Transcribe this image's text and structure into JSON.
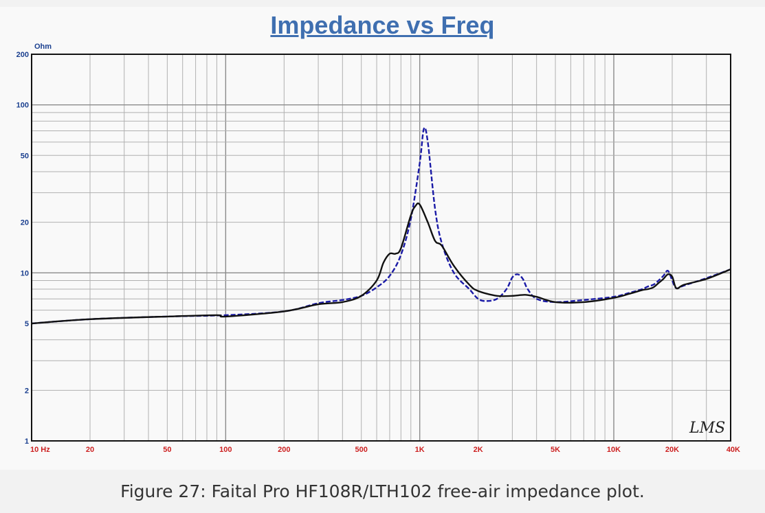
{
  "chart_data": {
    "type": "line",
    "title": "Impedance vs Freq",
    "y_unit": "Ohm",
    "x_scale": "log",
    "y_scale": "log",
    "xlim": [
      10,
      40000
    ],
    "ylim": [
      1,
      200
    ],
    "grid": true,
    "x_ticks": [
      {
        "value": 10,
        "label": "10  Hz"
      },
      {
        "value": 20,
        "label": "20"
      },
      {
        "value": 50,
        "label": "50"
      },
      {
        "value": 100,
        "label": "100"
      },
      {
        "value": 200,
        "label": "200"
      },
      {
        "value": 500,
        "label": "500"
      },
      {
        "value": 1000,
        "label": "1K"
      },
      {
        "value": 2000,
        "label": "2K"
      },
      {
        "value": 5000,
        "label": "5K"
      },
      {
        "value": 10000,
        "label": "10K"
      },
      {
        "value": 20000,
        "label": "20K"
      },
      {
        "value": 40000,
        "label": "40K"
      }
    ],
    "y_ticks": [
      {
        "value": 200,
        "label": "200"
      },
      {
        "value": 100,
        "label": "100"
      },
      {
        "value": 50,
        "label": "50"
      },
      {
        "value": 20,
        "label": "20"
      },
      {
        "value": 10,
        "label": "10"
      },
      {
        "value": 5,
        "label": "5"
      },
      {
        "value": 2,
        "label": "2"
      },
      {
        "value": 1,
        "label": "1"
      }
    ],
    "series": [
      {
        "color": "#1a1aa6",
        "style": "dashed",
        "x": [
          10,
          20,
          50,
          100,
          200,
          300,
          400,
          500,
          600,
          700,
          800,
          900,
          1000,
          1050,
          1100,
          1200,
          1300,
          1500,
          1800,
          2000,
          2200,
          2500,
          2800,
          3000,
          3200,
          3400,
          3600,
          4000,
          5000,
          7000,
          10000,
          12000,
          14000,
          15000,
          16000,
          17000,
          18000,
          19000,
          20000,
          21000,
          23000,
          30000,
          40000
        ],
        "y": [
          5.0,
          5.3,
          5.5,
          5.6,
          5.9,
          6.6,
          6.9,
          7.3,
          8.2,
          9.6,
          12.8,
          21,
          45,
          72,
          60,
          24,
          15,
          10,
          8.0,
          7.0,
          6.8,
          7.0,
          8.0,
          9.4,
          9.8,
          9.2,
          8.0,
          7.0,
          6.7,
          6.9,
          7.2,
          7.6,
          8.0,
          8.3,
          8.5,
          9.0,
          9.6,
          10.3,
          9.0,
          8.1,
          8.4,
          9.3,
          10.5
        ]
      },
      {
        "color": "#111111",
        "style": "solid",
        "x": [
          10,
          20,
          50,
          90,
          100,
          200,
          300,
          400,
          500,
          600,
          650,
          700,
          750,
          800,
          900,
          950,
          1000,
          1100,
          1200,
          1300,
          1500,
          1800,
          2000,
          2500,
          3000,
          3500,
          4000,
          5000,
          7000,
          10000,
          12000,
          14000,
          15000,
          16000,
          17000,
          18000,
          19000,
          20000,
          21000,
          23000,
          30000,
          40000
        ],
        "y": [
          5.0,
          5.3,
          5.5,
          5.6,
          5.5,
          5.9,
          6.5,
          6.7,
          7.3,
          9.0,
          11.5,
          13.0,
          13.0,
          14.0,
          22,
          25,
          25.5,
          20,
          15.5,
          14.5,
          11,
          8.5,
          7.8,
          7.3,
          7.3,
          7.4,
          7.2,
          6.7,
          6.7,
          7.1,
          7.5,
          7.9,
          8.0,
          8.2,
          8.7,
          9.2,
          9.8,
          9.5,
          8.1,
          8.5,
          9.2,
          10.5
        ]
      }
    ],
    "watermark": "LMS"
  },
  "caption": "Figure 27: Faital Pro HF108R/LTH102 free-air impedance plot."
}
